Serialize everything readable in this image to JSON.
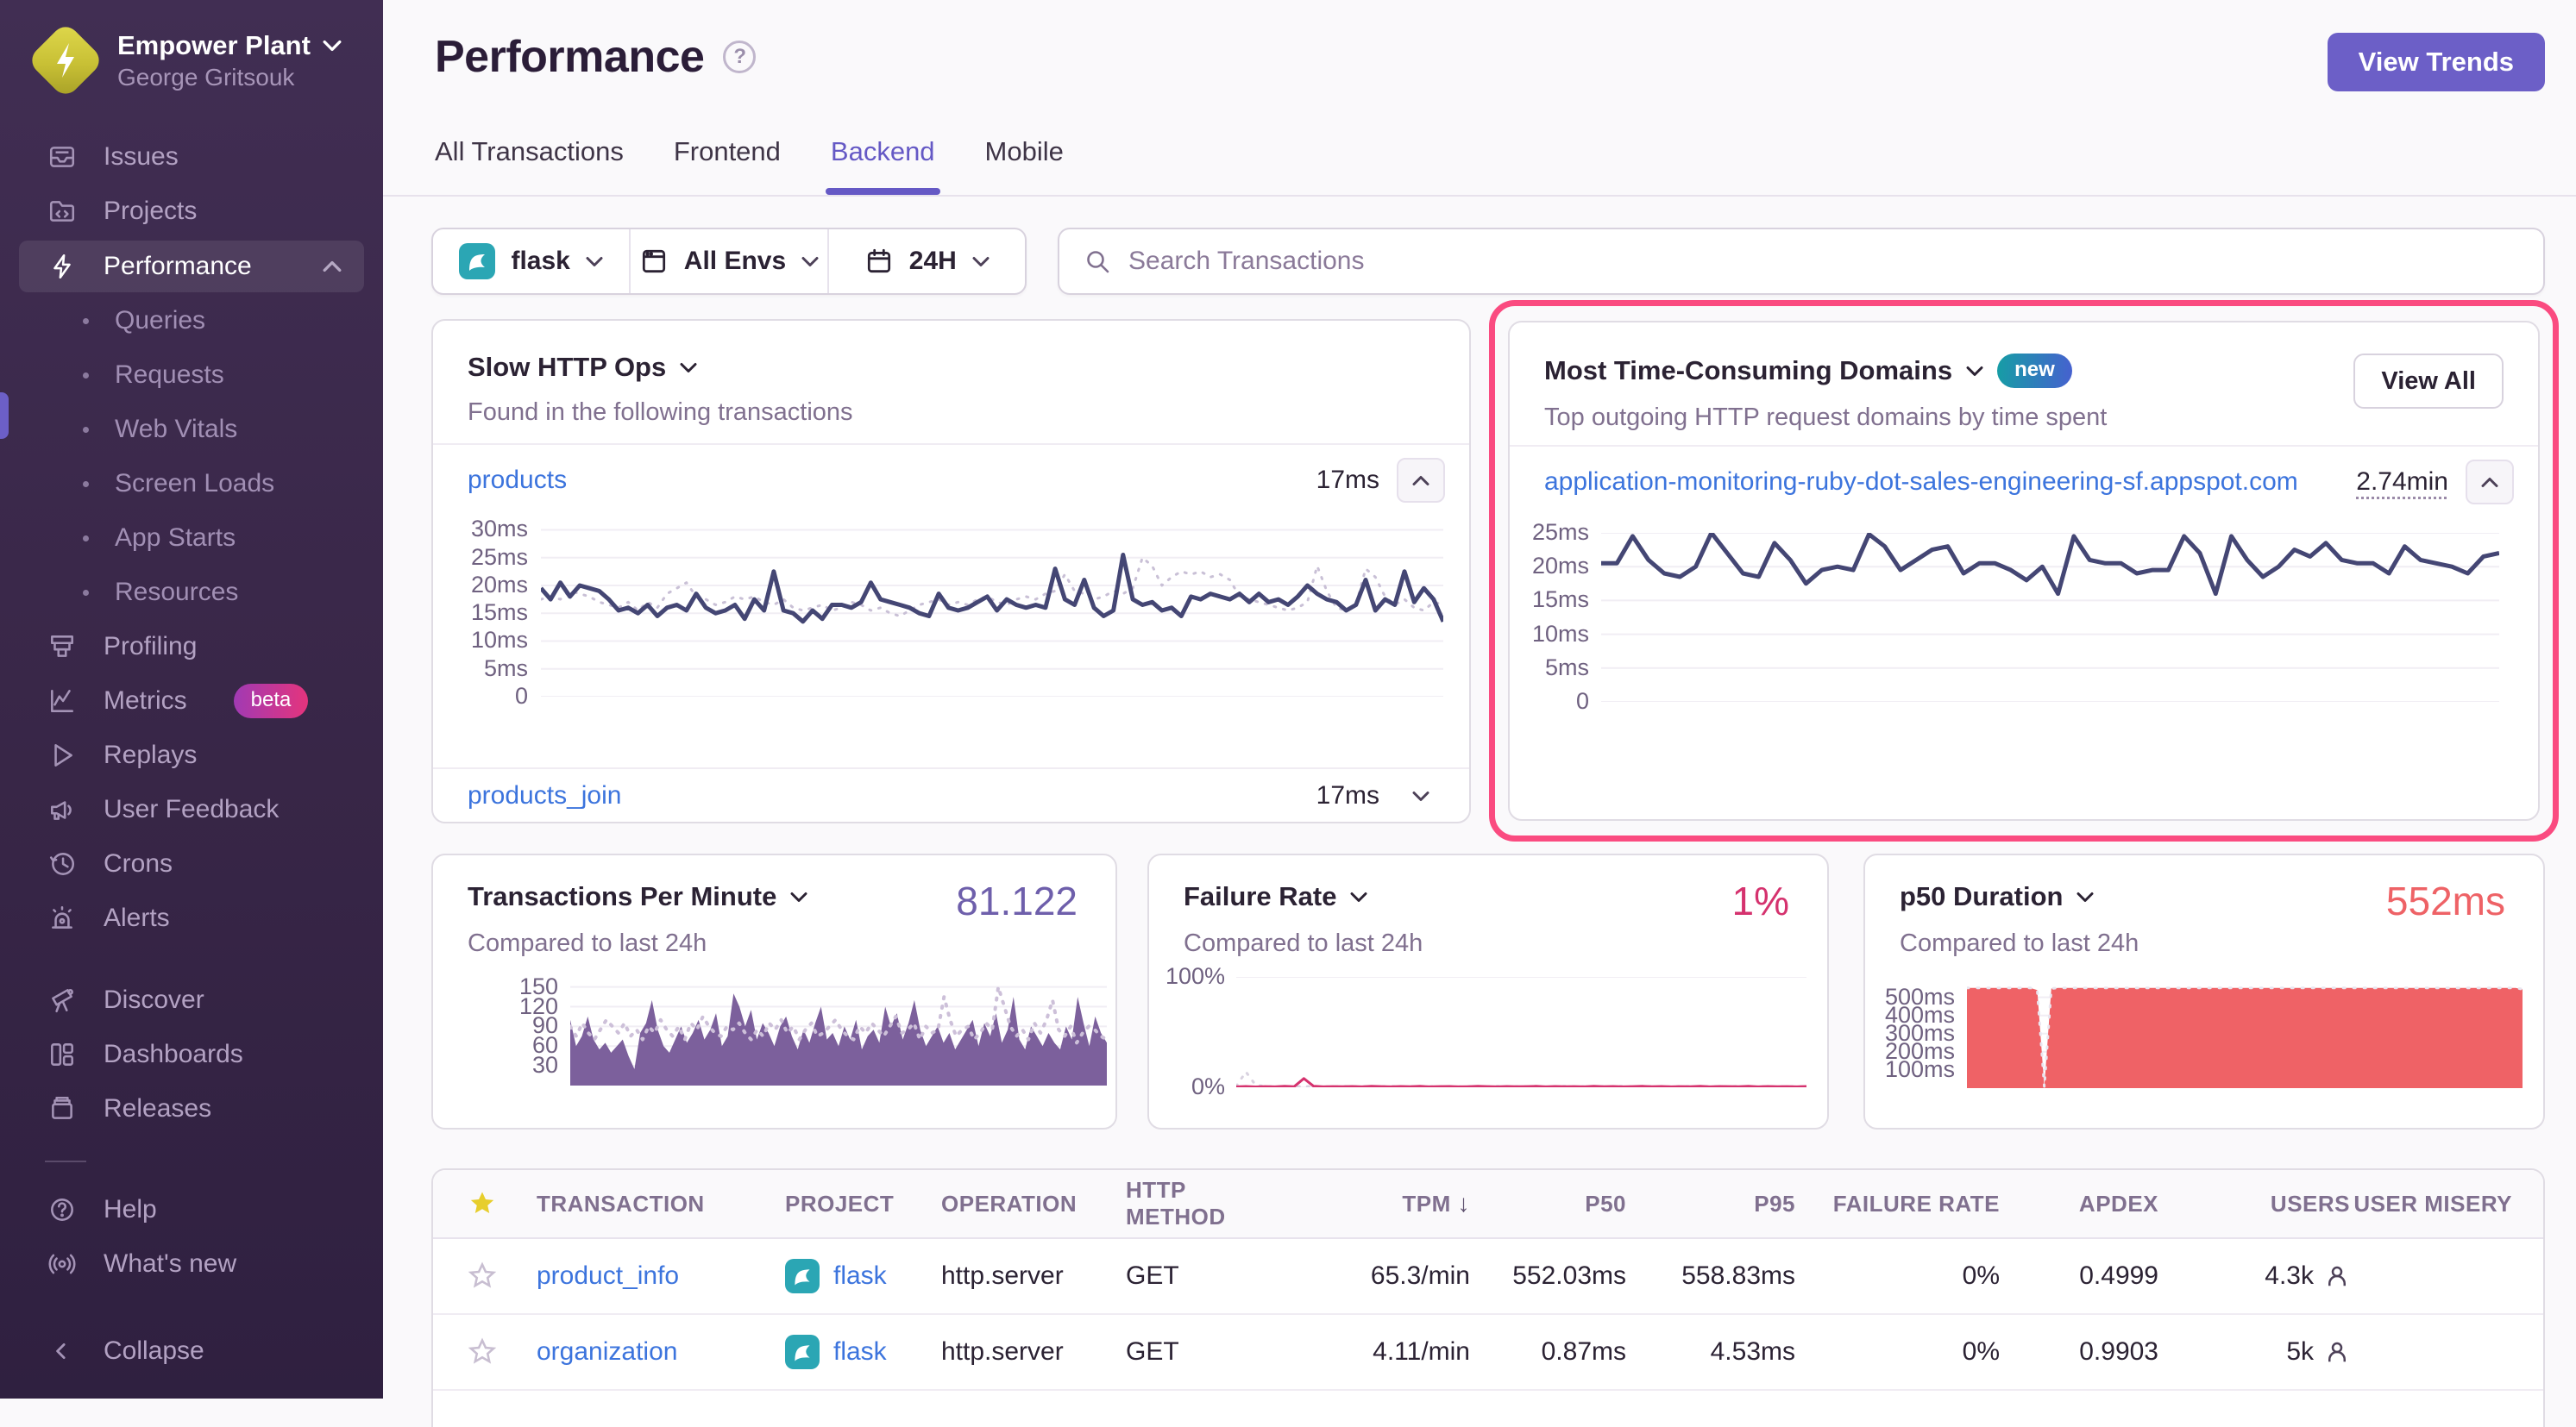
{
  "sidebar": {
    "org": {
      "name": "Empower Plant",
      "user": "George Gritsouk"
    },
    "items": [
      {
        "label": "Issues"
      },
      {
        "label": "Projects"
      },
      {
        "label": "Performance",
        "active": true
      },
      {
        "label": "Profiling"
      },
      {
        "label": "Metrics",
        "badge": "beta"
      },
      {
        "label": "Replays"
      },
      {
        "label": "User Feedback"
      },
      {
        "label": "Crons"
      },
      {
        "label": "Alerts"
      },
      {
        "label": "Discover"
      },
      {
        "label": "Dashboards"
      },
      {
        "label": "Releases"
      },
      {
        "label": "Help"
      },
      {
        "label": "What's new"
      },
      {
        "label": "Collapse"
      }
    ],
    "performance_sub_items": [
      {
        "label": "Queries"
      },
      {
        "label": "Requests"
      },
      {
        "label": "Web Vitals"
      },
      {
        "label": "Screen Loads"
      },
      {
        "label": "App Starts"
      },
      {
        "label": "Resources"
      }
    ]
  },
  "header": {
    "title": "Performance",
    "view_trends": "View Trends"
  },
  "tabs": [
    {
      "label": "All Transactions",
      "active": false
    },
    {
      "label": "Frontend",
      "active": false
    },
    {
      "label": "Backend",
      "active": true
    },
    {
      "label": "Mobile",
      "active": false
    }
  ],
  "filters": {
    "project": "flask",
    "environment": "All Envs",
    "date_range": "24H",
    "search_placeholder": "Search Transactions"
  },
  "panels": {
    "slow_http": {
      "title": "Slow HTTP Ops",
      "subtitle": "Found in the following transactions",
      "rows": [
        {
          "name": "products",
          "value": "17ms"
        },
        {
          "name": "products_join",
          "value": "17ms"
        }
      ]
    },
    "domains": {
      "title": "Most Time-Consuming Domains",
      "badge": "new",
      "view_all": "View All",
      "subtitle": "Top outgoing HTTP request domains by time spent",
      "rows": [
        {
          "name": "application-monitoring-ruby-dot-sales-engineering-sf.appspot.com",
          "value": "2.74min"
        }
      ]
    },
    "tpm": {
      "title": "Transactions Per Minute",
      "value": "81.122",
      "subtitle": "Compared to last 24h"
    },
    "failure": {
      "title": "Failure Rate",
      "value": "1%",
      "subtitle": "Compared to last 24h"
    },
    "p50": {
      "title": "p50 Duration",
      "value": "552ms",
      "subtitle": "Compared to last 24h"
    }
  },
  "table": {
    "columns": [
      "TRANSACTION",
      "PROJECT",
      "OPERATION",
      "HTTP METHOD",
      "TPM",
      "P50",
      "P95",
      "FAILURE RATE",
      "APDEX",
      "USERS",
      "USER MISERY"
    ],
    "sort": {
      "column": "TPM",
      "direction": "desc"
    },
    "rows": [
      {
        "transaction": "product_info",
        "project": "flask",
        "operation": "http.server",
        "method": "GET",
        "tpm": "65.3/min",
        "p50": "552.03ms",
        "p95": "558.83ms",
        "failure": "0%",
        "apdex": "0.4999",
        "users": "4.3k"
      },
      {
        "transaction": "organization",
        "project": "flask",
        "operation": "http.server",
        "method": "GET",
        "tpm": "4.11/min",
        "p50": "0.87ms",
        "p95": "4.53ms",
        "failure": "0%",
        "apdex": "0.9903",
        "users": "5k"
      }
    ]
  },
  "colors": {
    "accent_purple": "#6c5fc7",
    "link_blue": "#3c74dd",
    "navy_line": "#444674",
    "pink_highlight": "#fa4b80",
    "tpm_fill": "#7c609c",
    "failure_pink": "#d5326e",
    "p50_red": "#ef6266",
    "project_teal": "#2ba6b4"
  },
  "charts": {
    "slow_http": {
      "type": "line",
      "unit": "ms",
      "ymin": 0,
      "ymax": 31,
      "ticks": [
        {
          "v": 30,
          "label": "30ms"
        },
        {
          "v": 25,
          "label": "25ms"
        },
        {
          "v": 20,
          "label": "20ms"
        },
        {
          "v": 15,
          "label": "15ms"
        },
        {
          "v": 10,
          "label": "10ms"
        },
        {
          "v": 5,
          "label": "5ms"
        },
        {
          "v": 0,
          "label": "0"
        }
      ],
      "series": [
        {
          "name": "previous",
          "color": "#c9c0d6",
          "width": 3,
          "dash": "2 9",
          "values": [
            17.5,
            18,
            17.5,
            19,
            18.5,
            18,
            17,
            16.5,
            16,
            17,
            15.5,
            17,
            16,
            18.5,
            19.5,
            20.5,
            18,
            17.5,
            16.5,
            17,
            18,
            17.5,
            18,
            17,
            16.5,
            17.5,
            16,
            15.5,
            16,
            16.5,
            15.5,
            16,
            17,
            16.5,
            15.5,
            16,
            15,
            14.5,
            15.5,
            16.5,
            17,
            17.5,
            16.5,
            17,
            16.5,
            17.5,
            18,
            17,
            16.5,
            17.5,
            18,
            17.5,
            18.5,
            19,
            22,
            19,
            18.5,
            17.5,
            18,
            19,
            18.5,
            19.5,
            25,
            23.5,
            20,
            21.5,
            22.5,
            22,
            22.5,
            21.5,
            22,
            21,
            18,
            17.5,
            17,
            16.5,
            16,
            15.5,
            16,
            17,
            23.5,
            19,
            16,
            15.5,
            16.5,
            23,
            21.5,
            18,
            16.5,
            17.5,
            16,
            15.5,
            17,
            16.5
          ]
        },
        {
          "name": "current",
          "color": "#444674",
          "width": 5,
          "values": [
            19.5,
            17.5,
            20.5,
            18,
            20,
            19.5,
            19,
            17.5,
            15.5,
            16,
            15,
            16.5,
            14.5,
            16,
            16.5,
            15.5,
            18.5,
            16,
            15,
            15.5,
            16.5,
            14,
            17.5,
            15.5,
            22.5,
            15.5,
            15,
            13.5,
            15.5,
            14,
            16.5,
            16.5,
            16,
            17,
            20.5,
            17.5,
            17,
            16.5,
            16,
            15,
            14.5,
            18.5,
            16,
            15.5,
            16,
            17,
            18,
            15.5,
            17.5,
            16.5,
            16,
            16.5,
            16,
            23,
            17.5,
            16.5,
            21,
            16,
            14.5,
            15.5,
            25.5,
            17.5,
            16.5,
            17,
            15.5,
            16,
            14.5,
            18,
            17.5,
            18.5,
            18,
            17.5,
            18.5,
            17,
            18.5,
            17,
            17.5,
            16.5,
            18,
            20,
            18.5,
            17.5,
            17,
            15.5,
            16.5,
            21,
            15.5,
            17.5,
            16.5,
            22.5,
            17,
            19.5,
            17.5,
            13.5
          ]
        }
      ]
    },
    "domains": {
      "type": "line",
      "unit": "ms",
      "ymin": 0,
      "ymax": 25,
      "ticks": [
        {
          "v": 25,
          "label": "25ms"
        },
        {
          "v": 20,
          "label": "20ms"
        },
        {
          "v": 15,
          "label": "15ms"
        },
        {
          "v": 10,
          "label": "10ms"
        },
        {
          "v": 5,
          "label": "5ms"
        },
        {
          "v": 0,
          "label": "0"
        }
      ],
      "series": [
        {
          "name": "current",
          "color": "#444674",
          "width": 5,
          "values": [
            20.5,
            20.5,
            24.5,
            21,
            19,
            18.5,
            20,
            25,
            22,
            19,
            18.5,
            23.5,
            21,
            17.5,
            19.5,
            20,
            19.5,
            24.8,
            23,
            19.5,
            21,
            22.5,
            23,
            19,
            20.5,
            20.5,
            19.5,
            18,
            20,
            16,
            24.5,
            21,
            20.5,
            20.5,
            19,
            19.5,
            19.5,
            24.5,
            22,
            16,
            24.5,
            21,
            18.5,
            20,
            22.5,
            21.5,
            23.5,
            21,
            20.5,
            20.5,
            19,
            23,
            21,
            20.5,
            20,
            19,
            21.5,
            22
          ]
        }
      ]
    },
    "tpm": {
      "type": "area",
      "ymin": 0,
      "ymax": 160,
      "ticks": [
        {
          "v": 150,
          "label": "150"
        },
        {
          "v": 120,
          "label": "120"
        },
        {
          "v": 90,
          "label": "90"
        },
        {
          "v": 60,
          "label": "60"
        },
        {
          "v": 30,
          "label": "30"
        }
      ],
      "series": [
        {
          "name": "current",
          "color": "#7c609c",
          "fill": true,
          "values": [
            100,
            60,
            75,
            105,
            70,
            55,
            65,
            50,
            60,
            70,
            45,
            25,
            80,
            95,
            130,
            85,
            60,
            50,
            70,
            90,
            65,
            80,
            100,
            70,
            85,
            110,
            60,
            75,
            140,
            120,
            90,
            115,
            70,
            95,
            80,
            60,
            90,
            105,
            75,
            55,
            85,
            65,
            95,
            120,
            70,
            80,
            60,
            90,
            70,
            100,
            55,
            75,
            85,
            65,
            120,
            90,
            110,
            70,
            95,
            130,
            85,
            60,
            75,
            90,
            65,
            80,
            55,
            70,
            85,
            100,
            60,
            95,
            75,
            110,
            65,
            85,
            135,
            70,
            55,
            90,
            75,
            60,
            80,
            65,
            55,
            90,
            70,
            135,
            95,
            60,
            105,
            80,
            65
          ]
        },
        {
          "name": "previous",
          "color": "#cdc0d9",
          "width": 4,
          "dash": "2 9",
          "values": [
            90,
            75,
            95,
            80,
            70,
            85,
            100,
            90,
            80,
            95,
            75,
            85,
            70,
            90,
            80,
            100,
            85,
            75,
            90,
            70,
            95,
            85,
            105,
            90,
            80,
            75,
            90,
            85,
            95,
            80,
            70,
            85,
            75,
            95,
            85,
            100,
            80,
            90,
            70,
            85,
            95,
            75,
            80,
            90,
            100,
            85,
            75,
            70,
            90,
            80,
            95,
            85,
            75,
            90,
            105,
            80,
            85,
            95,
            70,
            90,
            80,
            85,
            135,
            100,
            75,
            85,
            90,
            70,
            80,
            95,
            85,
            150,
            120,
            90,
            75,
            85,
            70,
            95,
            80,
            100,
            130,
            85,
            75,
            90,
            65,
            80,
            90,
            85,
            75,
            70
          ]
        }
      ]
    },
    "failure": {
      "type": "line",
      "ymin": 0,
      "ymax": 100,
      "ticks": [
        {
          "v": 100,
          "label": "100%"
        },
        {
          "v": 0,
          "label": "0%"
        }
      ],
      "series": [
        {
          "name": "previous",
          "color": "#d9d2e0",
          "width": 3,
          "dash": "2 9",
          "values": [
            1,
            14,
            2,
            0.8,
            0.6,
            0.7,
            0.5,
            0.8,
            0.6,
            0.7,
            0.5,
            0.9,
            0.6,
            0.8,
            0.5,
            0.7,
            0.9,
            0.6,
            0.8,
            0.5,
            0.7,
            0.6,
            0.9,
            0.5,
            0.8,
            0.7,
            0.6,
            0.9,
            0.5,
            0.8,
            0.6,
            0.7,
            0.5,
            0.8,
            0.9,
            0.6,
            0.7,
            0.5,
            0.8,
            0.6,
            0.9,
            0.5,
            0.7,
            0.8,
            0.5,
            0.6,
            0.9,
            0.7,
            0.5,
            0.8,
            0.6,
            0.7,
            0.9,
            0.5,
            0.8,
            0.6,
            0.7,
            0.5,
            0.8,
            0.6
          ]
        },
        {
          "name": "current",
          "color": "#d5326e",
          "width": 3,
          "values": [
            0.5,
            0.8,
            0.4,
            0.7,
            0.5,
            0.9,
            0.6,
            8,
            1,
            0.5,
            0.7,
            0.6,
            0.8,
            0.5,
            0.9,
            0.7,
            0.5,
            0.8,
            0.6,
            0.9,
            0.5,
            0.7,
            0.8,
            0.5,
            0.6,
            0.9,
            0.7,
            0.5,
            0.8,
            0.6,
            0.7,
            0.9,
            0.5,
            0.8,
            0.6,
            0.7,
            0.5,
            0.9,
            0.6,
            0.8,
            0.5,
            0.7,
            0.9,
            0.6,
            0.8,
            0.5,
            0.7,
            0.6,
            0.9,
            0.5,
            0.8,
            0.7,
            0.6,
            0.9,
            0.5,
            0.8,
            0.6,
            0.7,
            0.5,
            0.8
          ]
        }
      ]
    },
    "p50": {
      "type": "area",
      "unit": "ms",
      "ymin": 0,
      "ymax": 560,
      "ticks": [
        {
          "v": 500,
          "label": "500ms"
        },
        {
          "v": 400,
          "label": "400ms"
        },
        {
          "v": 300,
          "label": "300ms"
        },
        {
          "v": 200,
          "label": "200ms"
        },
        {
          "v": 100,
          "label": "100ms"
        }
      ],
      "series": [
        {
          "name": "current",
          "color": "#ef6266",
          "fill": true,
          "values": [
            552,
            552,
            552,
            552,
            552,
            552,
            552,
            552,
            552,
            552,
            540,
            5,
            548,
            552,
            552,
            552,
            552,
            552,
            552,
            552,
            552,
            552,
            552,
            552,
            552,
            552,
            552,
            552,
            552,
            552,
            552,
            552,
            552,
            552,
            552,
            552,
            552,
            552,
            552,
            552,
            552,
            552,
            552,
            552,
            552,
            552,
            552,
            552,
            552,
            552,
            552,
            552,
            552,
            552,
            552,
            552,
            552,
            552,
            552,
            552,
            552,
            552,
            552,
            552,
            552,
            552,
            552,
            552,
            552,
            552,
            552,
            552,
            552,
            552,
            552,
            552,
            552,
            552,
            552,
            545
          ]
        },
        {
          "name": "previous",
          "color": "#e9e5ef",
          "width": 3,
          "dash": "2 10",
          "values": [
            552,
            552,
            552,
            552,
            552,
            552,
            552,
            552,
            552,
            552,
            540,
            5,
            548,
            552,
            552,
            552,
            552,
            552,
            552,
            552,
            552,
            552,
            552,
            552,
            552,
            552,
            552,
            552,
            552,
            552,
            552,
            552,
            552,
            552,
            552,
            552,
            552,
            552,
            552,
            552,
            552,
            552,
            552,
            552,
            552,
            552,
            552,
            552,
            552,
            552,
            552,
            552,
            552,
            552,
            552,
            552,
            552,
            552,
            552,
            552,
            552,
            552,
            552,
            552,
            552,
            552,
            552,
            552,
            552,
            552,
            552,
            552,
            552,
            552,
            552,
            552,
            552,
            552,
            552,
            545
          ]
        }
      ]
    }
  }
}
